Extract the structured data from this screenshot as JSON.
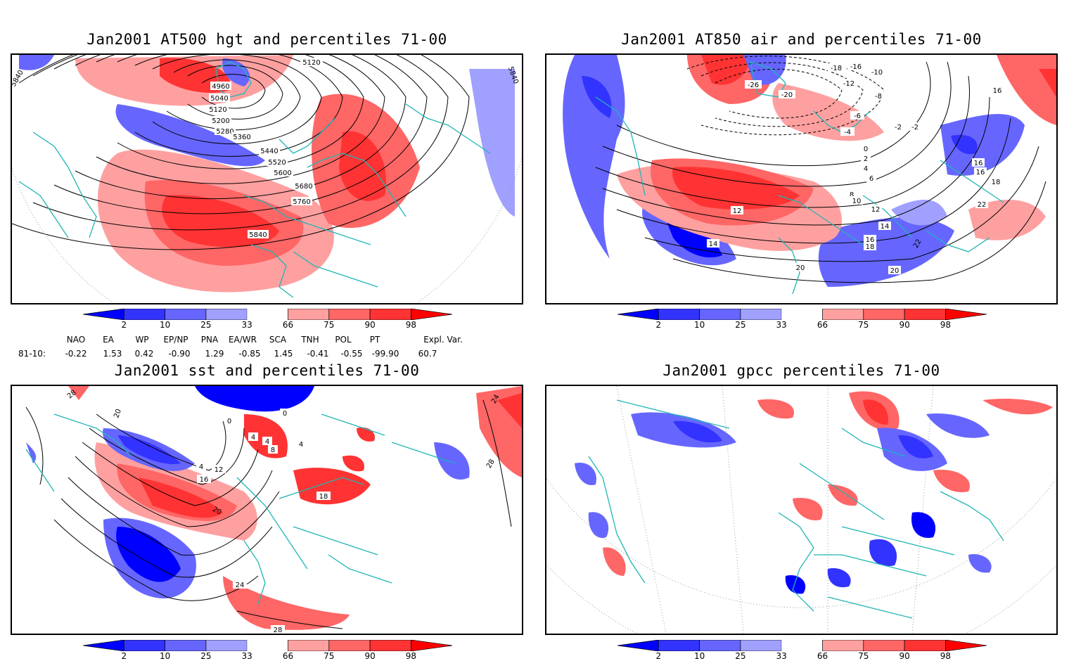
{
  "panels": [
    {
      "title": "Jan2001 AT500 hgt and percentiles 71-00",
      "contour_labels": [
        "5120",
        "4960",
        "5040",
        "5120",
        "5200",
        "5280",
        "5360",
        "5440",
        "5520",
        "5600",
        "5680",
        "5760",
        "5840",
        "5840",
        "5840"
      ]
    },
    {
      "title": "Jan2001 AT850 air and percentiles 71-00",
      "contour_labels": [
        "-26",
        "-20",
        "-18",
        "-16",
        "-12",
        "-10",
        "-8",
        "-6",
        "-4",
        "-2",
        "0",
        "2",
        "4",
        "6",
        "8",
        "10",
        "12",
        "12",
        "14",
        "14",
        "16",
        "16",
        "16",
        "18",
        "18",
        "20",
        "20",
        "22",
        "22",
        "-2",
        "16"
      ]
    },
    {
      "title": "Jan2001 sst and percentiles 71-00",
      "contour_labels": [
        "28",
        "20",
        "0",
        "0",
        "4",
        "4",
        "4",
        "8",
        "4",
        "12",
        "16",
        "20",
        "24",
        "28",
        "28",
        "18",
        "24"
      ]
    },
    {
      "title": "Jan2001 gpcc percentiles 71-00",
      "contour_labels": []
    }
  ],
  "colorbar": {
    "labels": [
      "2",
      "10",
      "25",
      "33",
      "66",
      "75",
      "90",
      "98"
    ],
    "colors": [
      "#0000ff",
      "#3333ff",
      "#6666ff",
      "#a0a0ff",
      "#ffa0a0",
      "#ff6666",
      "#ff3333",
      "#ff0000"
    ]
  },
  "indices": {
    "headers": [
      "NAO",
      "EA",
      "WP",
      "EP/NP",
      "PNA",
      "EA/WR",
      "SCA",
      "TNH",
      "POL",
      "PT",
      "Expl. Var."
    ],
    "row_label": "81-10:",
    "values": [
      "-0.22",
      "1.53",
      "0.42",
      "-0.90",
      "1.29",
      "-0.85",
      "1.45",
      "-0.41",
      "-0.55",
      "-99.90",
      "60.7"
    ]
  }
}
